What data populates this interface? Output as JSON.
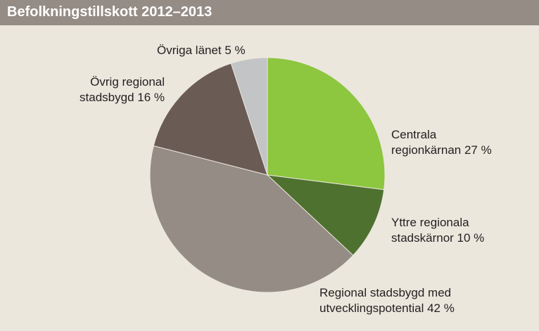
{
  "chart_data": {
    "type": "pie",
    "title": "Befolkningstillskott 2012–2013",
    "slices": [
      {
        "label_lines": [
          "Centrala",
          "regionkärnan 27 %"
        ],
        "value": 27,
        "color": "#8dc63f"
      },
      {
        "label_lines": [
          "Yttre regionala",
          "stadskärnor 10 %"
        ],
        "value": 10,
        "color": "#4f7130"
      },
      {
        "label_lines": [
          "Regional stadsbygd med",
          "utvecklingspotential 42 %"
        ],
        "value": 42,
        "color": "#958c86"
      },
      {
        "label_lines": [
          "Övrig regional",
          "stadsbygd 16 %"
        ],
        "value": 16,
        "color": "#6b5b55"
      },
      {
        "label_lines": [
          "Övriga länet 5 %"
        ],
        "value": 5,
        "color": "#c2c4c6"
      }
    ]
  }
}
